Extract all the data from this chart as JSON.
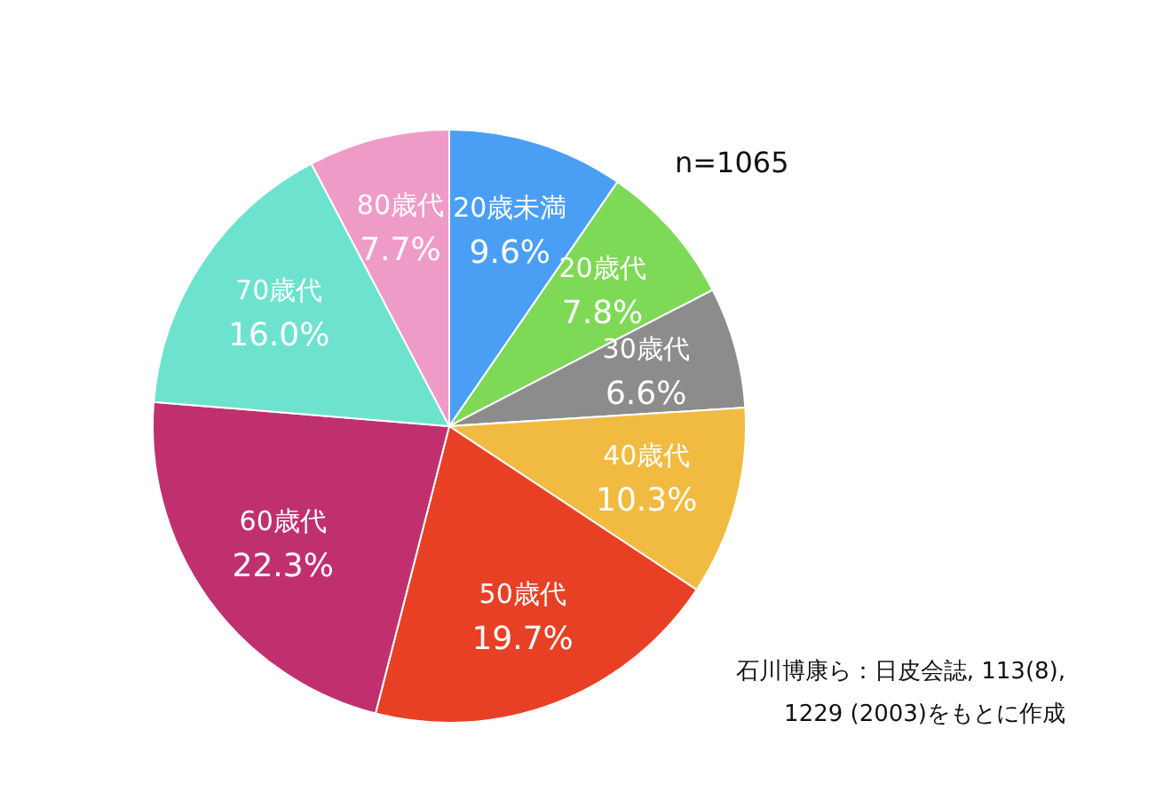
{
  "chart_data": {
    "type": "pie",
    "categories": [
      "20歳未満",
      "20歳代",
      "30歳代",
      "40歳代",
      "50歳代",
      "60歳代",
      "70歳代",
      "80歳代"
    ],
    "values": [
      9.6,
      7.8,
      6.6,
      10.3,
      19.7,
      22.3,
      16.0,
      7.7
    ],
    "value_labels": [
      "9.6%",
      "7.8%",
      "6.6%",
      "10.3%",
      "19.7%",
      "22.3%",
      "16.0%",
      "7.7%"
    ],
    "colors": [
      "#4a9ff5",
      "#7ed957",
      "#8c8c8c",
      "#f0bb40",
      "#e84025",
      "#c0306f",
      "#6de3cf",
      "#ef9bc8"
    ],
    "annotations": [
      "n=1065",
      "石川博康ら：日皮会誌, 113(8),",
      "1229 (2003)をもとに作成"
    ]
  }
}
